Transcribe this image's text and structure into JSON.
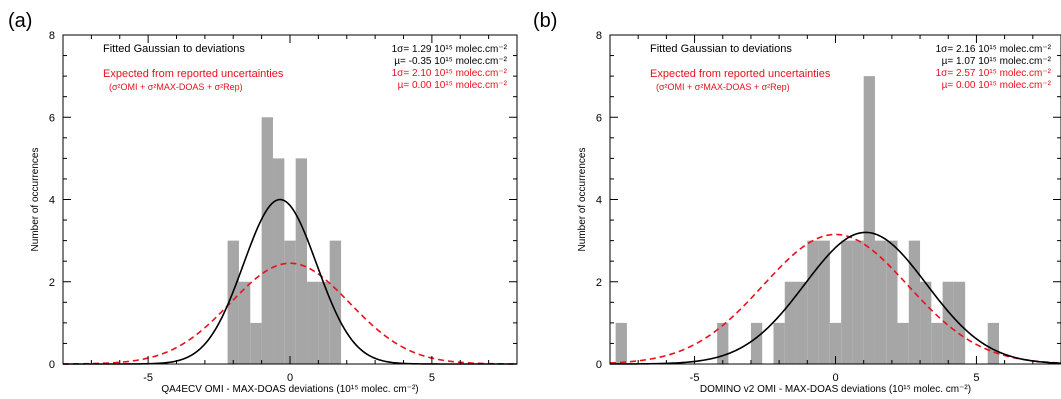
{
  "chart_data": [
    {
      "type": "histogram",
      "panel_label": "(a)",
      "xlabel": "QA4ECV OMI - MAX-DOAS deviations (10¹⁵ molec. cm⁻²)",
      "ylabel": "Number of occurrences",
      "xlim": [
        -8,
        8
      ],
      "ylim": [
        0,
        8
      ],
      "xticks": [
        -5,
        0,
        5
      ],
      "yticks": [
        0,
        2,
        4,
        6,
        8
      ],
      "bin_width": 0.4,
      "bins": [
        {
          "x0": -2.2,
          "x1": -1.8,
          "count": 3
        },
        {
          "x0": -1.8,
          "x1": -1.4,
          "count": 2
        },
        {
          "x0": -1.4,
          "x1": -1.0,
          "count": 1
        },
        {
          "x0": -1.0,
          "x1": -0.6,
          "count": 6
        },
        {
          "x0": -0.6,
          "x1": -0.2,
          "count": 5
        },
        {
          "x0": -0.2,
          "x1": 0.2,
          "count": 3
        },
        {
          "x0": 0.2,
          "x1": 0.6,
          "count": 5
        },
        {
          "x0": 0.6,
          "x1": 1.0,
          "count": 2
        },
        {
          "x0": 1.0,
          "x1": 1.4,
          "count": 2
        },
        {
          "x0": 1.4,
          "x1": 1.8,
          "count": 3
        }
      ],
      "fitted_curve": {
        "name": "Fitted Gaussian to deviations",
        "sigma": 1.29,
        "mu": -0.35,
        "peak": 4.0,
        "color": "#000000",
        "style": "solid"
      },
      "expected_curve": {
        "name": "Expected from reported uncertainties",
        "sigma": 2.1,
        "mu": 0.0,
        "peak": 2.45,
        "color": "#e8101c",
        "style": "dashed"
      },
      "annotations": {
        "fit_title": "Fitted Gaussian to deviations",
        "fit_sigma": "1σ= 1.29 10¹⁵ molec.cm⁻²",
        "fit_mu": "µ= -0.35 10¹⁵ molec.cm⁻²",
        "exp_title": "Expected from reported uncertainties",
        "exp_formula": "(σ²OMI + σ²MAX-DOAS + σ²Rep)",
        "exp_sigma": "1σ= 2.10 10¹⁵ molec.cm⁻²",
        "exp_mu": "µ= 0.00 10¹⁵ molec.cm⁻²"
      }
    },
    {
      "type": "histogram",
      "panel_label": "(b)",
      "xlabel": "DOMINO v2 OMI - MAX-DOAS deviations (10¹⁵ molec. cm⁻²)",
      "ylabel": "Number of occurrences",
      "xlim": [
        -8,
        8
      ],
      "ylim": [
        0,
        8
      ],
      "xticks": [
        -5,
        0,
        5
      ],
      "yticks": [
        0,
        2,
        4,
        6,
        8
      ],
      "bin_width": 0.4,
      "bins": [
        {
          "x0": -7.8,
          "x1": -7.4,
          "count": 1
        },
        {
          "x0": -4.2,
          "x1": -3.8,
          "count": 1
        },
        {
          "x0": -3.0,
          "x1": -2.6,
          "count": 1
        },
        {
          "x0": -2.2,
          "x1": -1.8,
          "count": 1
        },
        {
          "x0": -1.8,
          "x1": -1.4,
          "count": 2
        },
        {
          "x0": -1.4,
          "x1": -1.0,
          "count": 2
        },
        {
          "x0": -1.0,
          "x1": -0.6,
          "count": 3
        },
        {
          "x0": -0.6,
          "x1": -0.2,
          "count": 3
        },
        {
          "x0": -0.2,
          "x1": 0.2,
          "count": 1
        },
        {
          "x0": 0.2,
          "x1": 0.6,
          "count": 3
        },
        {
          "x0": 0.6,
          "x1": 1.0,
          "count": 3
        },
        {
          "x0": 1.0,
          "x1": 1.4,
          "count": 7
        },
        {
          "x0": 1.4,
          "x1": 1.8,
          "count": 3
        },
        {
          "x0": 1.8,
          "x1": 2.2,
          "count": 3
        },
        {
          "x0": 2.2,
          "x1": 2.6,
          "count": 1
        },
        {
          "x0": 2.6,
          "x1": 3.0,
          "count": 3
        },
        {
          "x0": 3.0,
          "x1": 3.4,
          "count": 2
        },
        {
          "x0": 3.4,
          "x1": 3.8,
          "count": 1
        },
        {
          "x0": 3.8,
          "x1": 4.2,
          "count": 2
        },
        {
          "x0": 4.2,
          "x1": 4.6,
          "count": 2
        },
        {
          "x0": 5.4,
          "x1": 5.8,
          "count": 1
        }
      ],
      "fitted_curve": {
        "name": "Fitted Gaussian to deviations",
        "sigma": 2.16,
        "mu": 1.07,
        "peak": 3.2,
        "color": "#000000",
        "style": "solid"
      },
      "expected_curve": {
        "name": "Expected from reported uncertainties",
        "sigma": 2.57,
        "mu": 0.0,
        "peak": 3.15,
        "color": "#e8101c",
        "style": "dashed"
      },
      "annotations": {
        "fit_title": "Fitted Gaussian to deviations",
        "fit_sigma": "1σ= 2.16 10¹⁵ molec.cm⁻²",
        "fit_mu": "µ= 1.07 10¹⁵ molec.cm⁻²",
        "exp_title": "Expected from reported uncertainties",
        "exp_formula": "(σ²OMI + σ²MAX-DOAS + σ²Rep)",
        "exp_sigma": "1σ= 2.57 10¹⁵ molec.cm⁻²",
        "exp_mu": "µ= 0.00 10¹⁵ molec.cm⁻²"
      }
    }
  ],
  "colors": {
    "bar_fill": "#a6a6a6",
    "fit_line": "#000000",
    "expected_line": "#e8101c",
    "axis": "#000000"
  }
}
